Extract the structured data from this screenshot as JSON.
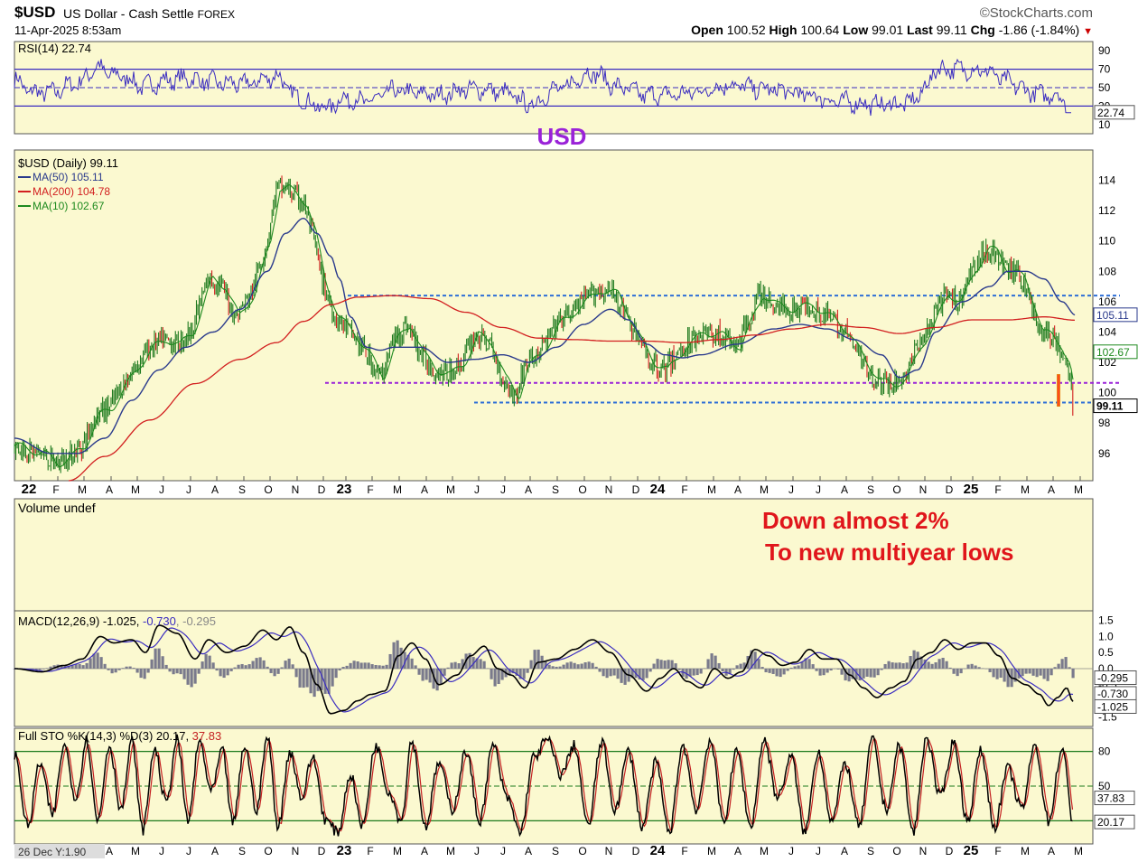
{
  "header": {
    "symbol": "$USD",
    "description": "US Dollar - Cash Settle",
    "exchange": "FOREX",
    "brand": "©StockCharts.com",
    "datetime": "11-Apr-2025 8:53am",
    "open_label": "Open",
    "open": "100.52",
    "high_label": "High",
    "high": "100.64",
    "low_label": "Low",
    "low": "99.01",
    "last_label": "Last",
    "last": "99.11",
    "chg_label": "Chg",
    "chg": "-1.86 (-1.84%)"
  },
  "colors": {
    "panel_bg": "#fbf9d0",
    "rsi_line": "#3a2cc0",
    "price_up": "#1f7a1f",
    "ma50": "#2a3a8c",
    "ma200": "#d21f1f",
    "ma10": "#1e8a1e",
    "blue_dash": "#2e6fd6",
    "purple_dash": "#9a22d8",
    "annotation_red": "#e0161b",
    "annotation_purple": "#9a22d8",
    "macd_line": "#000000",
    "signal_line": "#3a2cc0",
    "histogram": "#7a7a8c",
    "sto_k": "#000000",
    "sto_d": "#c42222",
    "sto_band": "#1c7a1c"
  },
  "chart_data": [
    {
      "type": "line",
      "panel": "rsi",
      "legend": "RSI(14) 22.74",
      "ylim": [
        0,
        100
      ],
      "yticks": [
        "90",
        "70",
        "50",
        "30",
        "10"
      ],
      "ytick_values": [
        90,
        70,
        50,
        30,
        10
      ],
      "reference_lines": [
        70,
        30
      ],
      "midline": 50,
      "last_value_label": "22.74",
      "last_value": 22.74,
      "annotation": "USD",
      "series": [
        {
          "anchors_x": [
            0,
            20,
            40,
            70,
            92,
            105,
            120,
            140,
            172,
            190,
            210,
            230,
            255,
            290,
            313,
            335,
            345,
            365,
            390,
            420,
            470,
            500,
            520,
            545,
            560,
            570,
            600,
            640,
            670,
            700,
            730,
            760,
            790,
            835,
            880,
            910,
            950,
            975,
            990,
            1000,
            1010,
            1020,
            1050,
            1080,
            1090,
            1110,
            1125,
            1140,
            1155,
            1165,
            1170
          ],
          "anchors_y": [
            58,
            45,
            45,
            55,
            72,
            65,
            62,
            52,
            58,
            60,
            57,
            55,
            54,
            62,
            40,
            30,
            28,
            38,
            35,
            46,
            42,
            48,
            48,
            44,
            36,
            31,
            48,
            66,
            50,
            42,
            42,
            46,
            53,
            48,
            42,
            35,
            32,
            32,
            33,
            40,
            52,
            70,
            70,
            68,
            60,
            52,
            45,
            42,
            42,
            34,
            22.74
          ]
        }
      ]
    },
    {
      "type": "line",
      "panel": "price",
      "legends": [
        "$USD (Daily) 99.11",
        "MA(50) 105.11",
        "MA(200) 104.78",
        "MA(10) 102.67"
      ],
      "ylim": [
        94.2,
        116
      ],
      "yticks": [
        "114",
        "112",
        "110",
        "108",
        "106",
        "104",
        "102",
        "100",
        "98",
        "96"
      ],
      "ytick_values": [
        114,
        112,
        110,
        108,
        106,
        104,
        102,
        100,
        98,
        96
      ],
      "right_value_labels": [
        {
          "text": "105.11",
          "value": 105.11,
          "color": "#2a3a8c"
        },
        {
          "text": "102.67",
          "value": 102.67,
          "color": "#1e8a1e"
        },
        {
          "text": "99.11",
          "value": 99.11,
          "color": "#000000",
          "bold": true
        }
      ],
      "x_month_labels": [
        "22",
        "F",
        "M",
        "A",
        "M",
        "J",
        "J",
        "A",
        "S",
        "O",
        "N",
        "D",
        "23",
        "F",
        "M",
        "A",
        "M",
        "J",
        "J",
        "A",
        "S",
        "O",
        "N",
        "D",
        "24",
        "F",
        "M",
        "A",
        "M",
        "J",
        "J",
        "A",
        "S",
        "O",
        "N",
        "D",
        "25",
        "F",
        "M",
        "A",
        "M"
      ],
      "x_label_positions": [
        32,
        62,
        91,
        121,
        150,
        179,
        209,
        238,
        268,
        297,
        327,
        356,
        381,
        410,
        440,
        470,
        499,
        528,
        557,
        585,
        615,
        645,
        674,
        704,
        728,
        758,
        788,
        817,
        846,
        876,
        906,
        935,
        964,
        993,
        1022,
        1051,
        1075,
        1105,
        1135,
        1164,
        1194
      ],
      "x_year_bold": [
        0,
        12,
        24,
        36
      ],
      "horizontal_lines": [
        {
          "value": 106.4,
          "x_from": 385,
          "x_to": 1240,
          "color": "#2e6fd6"
        },
        {
          "value": 100.65,
          "x_from": 360,
          "x_to": 1240,
          "color": "#9a22d8"
        },
        {
          "value": 99.35,
          "x_from": 525,
          "x_to": 1240,
          "color": "#2e6fd6"
        }
      ],
      "annotation_lines": [
        "Down almost 2%",
        "To new multiyear lows"
      ],
      "price_anchors_x": [
        0,
        15,
        30,
        45,
        60,
        75,
        90,
        105,
        120,
        135,
        150,
        165,
        180,
        195,
        215,
        230,
        245,
        262,
        280,
        290,
        300,
        310,
        320,
        330,
        340,
        355,
        372,
        390,
        405,
        420,
        435,
        450,
        465,
        480,
        495,
        510,
        525,
        540,
        555,
        565,
        580,
        600,
        620,
        645,
        665,
        690,
        705,
        720,
        740,
        760,
        780,
        800,
        825,
        840,
        860,
        880,
        905,
        920,
        940,
        955,
        970,
        985,
        1000,
        1015,
        1030,
        1045,
        1060,
        1075,
        1085,
        1095,
        1105,
        1115,
        1125,
        1135,
        1145,
        1155,
        1165,
        1172
      ],
      "price_anchors_y": [
        96.5,
        96.2,
        96.0,
        95.3,
        95.8,
        96.5,
        98.5,
        99.0,
        100.5,
        101.8,
        103.0,
        103.5,
        103.2,
        104.0,
        107.5,
        107.0,
        105.0,
        106.5,
        110.0,
        113.5,
        113.5,
        113.0,
        112.5,
        110.5,
        107.5,
        105.0,
        104.0,
        102.5,
        101.0,
        103.5,
        104.5,
        102.5,
        101.5,
        101.2,
        102.0,
        103.8,
        103.3,
        101.0,
        99.7,
        101.8,
        102.5,
        104.5,
        105.5,
        106.8,
        106.5,
        103.5,
        102.0,
        101.5,
        103.0,
        104.0,
        103.8,
        103.0,
        106.5,
        105.8,
        105.5,
        105.8,
        104.8,
        104.0,
        102.0,
        100.8,
        100.5,
        101.0,
        103.0,
        104.5,
        106.5,
        106.0,
        108.0,
        109.5,
        109.3,
        108.2,
        108.0,
        107.5,
        106.0,
        104.0,
        103.8,
        103.2,
        101.8,
        99.11
      ],
      "ma50_anchors_x": [
        0,
        40,
        70,
        100,
        130,
        160,
        190,
        220,
        250,
        280,
        300,
        320,
        335,
        350,
        360,
        372,
        390,
        405,
        420,
        450,
        480,
        510,
        540,
        570,
        600,
        630,
        660,
        680,
        700,
        720,
        740,
        760,
        800,
        840,
        870,
        900,
        930,
        960,
        980,
        1000,
        1020,
        1050,
        1080,
        1100,
        1120,
        1140,
        1160,
        1175
      ],
      "ma50_anchors_y": [
        97.0,
        96.0,
        96.0,
        97.0,
        99.5,
        101.5,
        103.0,
        104.0,
        105.5,
        108.0,
        110.5,
        111.5,
        110.5,
        109.0,
        107.5,
        105.0,
        103.0,
        102.8,
        103.0,
        103.0,
        102.0,
        102.2,
        102.5,
        102.0,
        103.0,
        104.5,
        105.5,
        104.8,
        103.2,
        102.5,
        102.3,
        102.5,
        103.2,
        104.2,
        104.5,
        104.2,
        103.5,
        102.5,
        101.0,
        101.5,
        104.0,
        106.0,
        107.0,
        108.0,
        108.0,
        107.5,
        106.0,
        105.11
      ],
      "ma200_anchors_x": [
        60,
        100,
        150,
        200,
        250,
        290,
        320,
        350,
        380,
        420,
        460,
        500,
        540,
        580,
        620,
        660,
        700,
        740,
        780,
        820,
        860,
        900,
        940,
        980,
        1020,
        1060,
        1100,
        1140,
        1175
      ],
      "ma200_anchors_y": [
        94.2,
        95.8,
        98.2,
        100.6,
        102.2,
        103.3,
        104.7,
        105.8,
        106.3,
        106.4,
        106.2,
        105.3,
        104.3,
        103.6,
        103.5,
        103.4,
        103.4,
        103.3,
        103.5,
        103.8,
        104.2,
        104.5,
        104.3,
        103.9,
        104.3,
        104.8,
        104.8,
        105.0,
        104.78
      ]
    },
    {
      "type": "bar",
      "panel": "volume",
      "legend": "Volume undef"
    },
    {
      "type": "line",
      "panel": "macd",
      "legend_parts": [
        {
          "text": "MACD(12,26,9) -1.025, ",
          "color": "#000000"
        },
        {
          "text": "-0.730",
          "color": "#3a2cc0"
        },
        {
          "text": ", -0.295",
          "color": "#888888"
        }
      ],
      "ylim": [
        -1.8,
        1.8
      ],
      "yticks": [
        "1.5",
        "1.0",
        "0.5",
        "0.0",
        "-0.5",
        "-1.0",
        "-1.5"
      ],
      "ytick_values": [
        1.5,
        1.0,
        0.5,
        0,
        -0.5,
        -1.0,
        -1.5
      ],
      "right_value_labels": [
        {
          "text": "-0.295",
          "value": -0.295
        },
        {
          "text": "-0.730",
          "value": -0.73
        },
        {
          "text": "-1.025",
          "value": -1.025
        }
      ],
      "macd_anchors_x": [
        0,
        30,
        55,
        75,
        95,
        110,
        130,
        145,
        160,
        180,
        200,
        215,
        235,
        255,
        275,
        290,
        305,
        320,
        335,
        350,
        365,
        380,
        395,
        410,
        425,
        440,
        455,
        470,
        490,
        505,
        520,
        535,
        550,
        565,
        580,
        600,
        620,
        640,
        660,
        680,
        700,
        715,
        730,
        745,
        760,
        775,
        790,
        805,
        820,
        835,
        850,
        865,
        880,
        895,
        910,
        925,
        940,
        955,
        970,
        985,
        1000,
        1015,
        1030,
        1045,
        1060,
        1075,
        1090,
        1105,
        1120,
        1135,
        1145,
        1155,
        1165,
        1172
      ],
      "macd_anchors_y": [
        0.0,
        -0.1,
        0.1,
        0.3,
        1.0,
        0.8,
        0.9,
        0.5,
        1.35,
        1.1,
        0.3,
        0.9,
        0.5,
        0.7,
        1.2,
        0.9,
        1.3,
        0.5,
        -0.5,
        -1.4,
        -1.3,
        -1.0,
        -0.8,
        -0.7,
        0.4,
        0.8,
        0.3,
        -0.5,
        -0.2,
        0.4,
        0.7,
        0.0,
        -0.2,
        -0.6,
        0.2,
        0.3,
        0.6,
        0.9,
        0.5,
        -0.2,
        -0.7,
        -0.3,
        0.0,
        -0.4,
        -0.6,
        0.0,
        -0.3,
        -0.1,
        0.6,
        0.4,
        0.1,
        0.2,
        0.6,
        0.3,
        0.3,
        -0.2,
        -0.6,
        -0.9,
        -0.6,
        -0.4,
        0.3,
        0.5,
        0.9,
        0.6,
        0.8,
        0.8,
        0.4,
        -0.3,
        -0.5,
        -0.8,
        -1.15,
        -0.9,
        -0.6,
        -1.025
      ]
    },
    {
      "type": "line",
      "panel": "stochastic",
      "legend_parts": [
        {
          "text": "Full STO %K(14,3) %D(3) 20.17, ",
          "color": "#000000"
        },
        {
          "text": "37.83",
          "color": "#c42222"
        }
      ],
      "ylim": [
        0,
        100
      ],
      "yticks": [
        "80",
        "50",
        "20"
      ],
      "ytick_values": [
        80,
        50,
        20
      ],
      "band_lines": [
        80,
        20
      ],
      "midline": 50,
      "right_value_labels": [
        {
          "text": "37.83",
          "value": 37.83
        },
        {
          "text": "20.17",
          "value": 20.17
        }
      ],
      "bottom_left_label": "26 Dec Y:1.90",
      "k_anchors_x": [
        0,
        15,
        28,
        42,
        55,
        68,
        80,
        92,
        105,
        118,
        130,
        142,
        155,
        168,
        180,
        192,
        205,
        218,
        230,
        242,
        255,
        268,
        280,
        292,
        305,
        318,
        330,
        345,
        358,
        372,
        385,
        400,
        415,
        428,
        440,
        455,
        470,
        485,
        500,
        515,
        530,
        545,
        560,
        575,
        590,
        605,
        620,
        635,
        650,
        665,
        680,
        695,
        710,
        725,
        740,
        755,
        770,
        785,
        800,
        815,
        830,
        845,
        860,
        875,
        890,
        905,
        920,
        935,
        950,
        965,
        980,
        995,
        1010,
        1025,
        1040,
        1055,
        1070,
        1085,
        1100,
        1115,
        1130,
        1145,
        1160,
        1172
      ],
      "k_anchors_y": [
        78,
        15,
        70,
        25,
        85,
        40,
        90,
        20,
        85,
        30,
        88,
        12,
        82,
        35,
        90,
        20,
        88,
        45,
        80,
        18,
        85,
        30,
        92,
        15,
        80,
        40,
        75,
        20,
        10,
        60,
        15,
        85,
        45,
        20,
        90,
        15,
        70,
        30,
        80,
        20,
        85,
        40,
        10,
        75,
        90,
        60,
        85,
        15,
        88,
        30,
        80,
        15,
        70,
        10,
        85,
        30,
        90,
        20,
        80,
        15,
        90,
        40,
        75,
        10,
        80,
        20,
        70,
        15,
        90,
        30,
        85,
        10,
        92,
        40,
        88,
        20,
        80,
        15,
        65,
        30,
        85,
        20,
        82,
        20
      ]
    }
  ]
}
